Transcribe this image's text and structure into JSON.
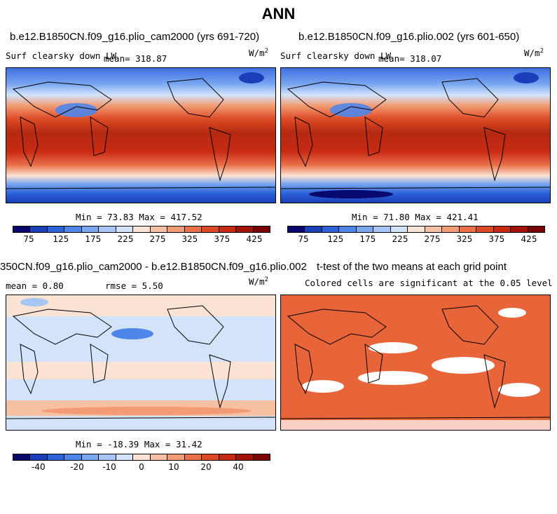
{
  "figure": {
    "title": "ANN"
  },
  "panels": {
    "p1": {
      "title": "b.e12.B1850CN.f09_g16.plio_cam2000 (yrs 691-720)",
      "variable": "Surf clearsky down LW",
      "mean_label": "mean= 318.87",
      "units": "W/m",
      "units_exp": "2",
      "stats": "Min =  73.83 Max = 417.52"
    },
    "p2": {
      "title": "b.e12.B1850CN.f09_g16.plio.002 (yrs 601-650)",
      "variable": "Surf clearsky down LW",
      "mean_label": "mean= 318.07",
      "units": "W/m",
      "units_exp": "2",
      "stats": "Min =  71.80 Max = 421.41"
    },
    "p3": {
      "title": "350CN.f09_g16.plio_cam2000 - b.e12.B1850CN.f09_g16.plio.002",
      "mean_label": "mean =   0.80",
      "rmse_label": "rmse =   5.50",
      "units": "W/m",
      "units_exp": "2",
      "stats": "Min = -18.39 Max =  31.42"
    },
    "p4": {
      "title": "t-test of the two means at each grid point",
      "subtitle": "Colored cells are significant at the 0.05 level"
    }
  },
  "chart_data": [
    {
      "type": "heatmap",
      "title": "b.e12.B1850CN.f09_g16.plio_cam2000 (yrs 691-720)",
      "variable": "Surf clearsky down LW",
      "units": "W/m^2",
      "mean": 318.87,
      "min": 73.83,
      "max": 417.52,
      "colorbar_ticks": [
        "75",
        "125",
        "175",
        "225",
        "275",
        "325",
        "375",
        "425"
      ],
      "colorbar_colors": [
        "#08086e",
        "#1a3fb8",
        "#2c63d8",
        "#4f86ea",
        "#7aa7f0",
        "#a7c6f5",
        "#d3e4fa",
        "#fbe3d3",
        "#f7c0a2",
        "#f29b74",
        "#ea7048",
        "#dd4a26",
        "#c72a12",
        "#a31408",
        "#7a0505"
      ]
    },
    {
      "type": "heatmap",
      "title": "b.e12.B1850CN.f09_g16.plio.002 (yrs 601-650)",
      "variable": "Surf clearsky down LW",
      "units": "W/m^2",
      "mean": 318.07,
      "min": 71.8,
      "max": 421.41,
      "colorbar_ticks": [
        "75",
        "125",
        "175",
        "225",
        "275",
        "325",
        "375",
        "425"
      ],
      "colorbar_colors": [
        "#08086e",
        "#1a3fb8",
        "#2c63d8",
        "#4f86ea",
        "#7aa7f0",
        "#a7c6f5",
        "#d3e4fa",
        "#fbe3d3",
        "#f7c0a2",
        "#f29b74",
        "#ea7048",
        "#dd4a26",
        "#c72a12",
        "#a31408",
        "#7a0505"
      ]
    },
    {
      "type": "heatmap",
      "title": "350CN.f09_g16.plio_cam2000 - b.e12.B1850CN.f09_g16.plio.002",
      "units": "W/m^2",
      "mean": 0.8,
      "rmse": 5.5,
      "min": -18.39,
      "max": 31.42,
      "colorbar_ticks": [
        "-40",
        "-20",
        "-10",
        "0",
        "10",
        "20",
        "40"
      ],
      "colorbar_colors": [
        "#08086e",
        "#1a3fb8",
        "#2c63d8",
        "#4f86ea",
        "#7aa7f0",
        "#a7c6f5",
        "#d3e4fa",
        "#fbe3d3",
        "#f7c0a2",
        "#f29b74",
        "#ea7048",
        "#dd4a26",
        "#c72a12",
        "#a31408",
        "#7a0505"
      ]
    },
    {
      "type": "heatmap",
      "title": "t-test of the two means at each grid point",
      "subtitle": "Colored cells are significant at the 0.05 level",
      "significant_color": "#e8653a"
    }
  ],
  "colors": {
    "ocean_warm": "#b52a10",
    "ttest_fill": "#e8653a"
  }
}
